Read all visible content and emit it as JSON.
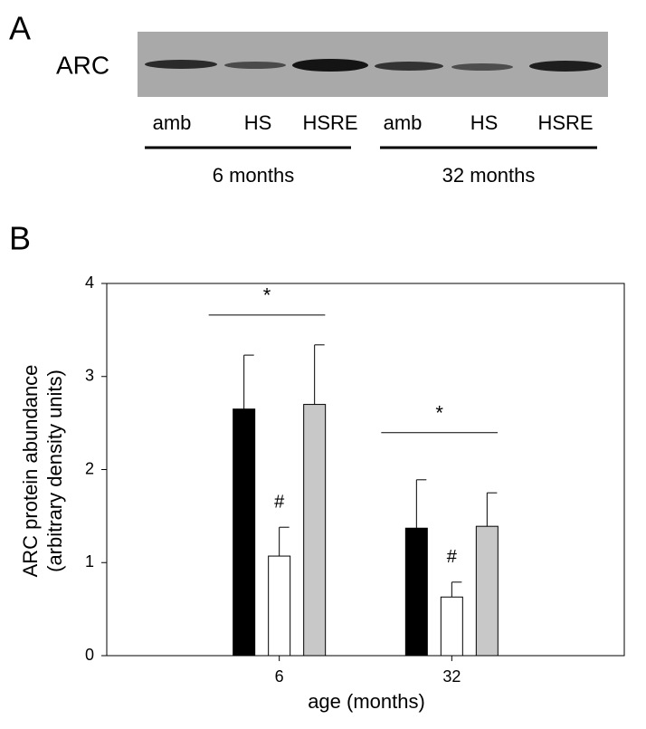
{
  "panel_a": {
    "label": "A",
    "protein": "ARC",
    "lanes": [
      "amb",
      "HS",
      "HSRE",
      "amb",
      "HS",
      "HSRE"
    ],
    "groups": [
      "6 months",
      "32 months"
    ]
  },
  "chart_data": {
    "type": "bar",
    "panel_label": "B",
    "y_label": [
      "ARC protein abundance",
      "(arbitrary density units)"
    ],
    "x_label": "age (months)",
    "categories": [
      "6",
      "32"
    ],
    "series": [
      {
        "color": "#000000",
        "values": [
          2.65,
          1.37
        ],
        "errors": [
          0.58,
          0.52
        ]
      },
      {
        "color": "#ffffff",
        "values": [
          1.07,
          0.63
        ],
        "errors": [
          0.31,
          0.16
        ]
      },
      {
        "color": "#c8c8c8",
        "values": [
          2.7,
          1.39
        ],
        "errors": [
          0.64,
          0.36
        ]
      }
    ],
    "significance_marks": [
      "*",
      "*"
    ],
    "hash_marks": [
      "#",
      "#"
    ],
    "ylim": [
      0,
      4
    ],
    "yticks": [
      0,
      1,
      2,
      3,
      4
    ],
    "grid": false
  }
}
